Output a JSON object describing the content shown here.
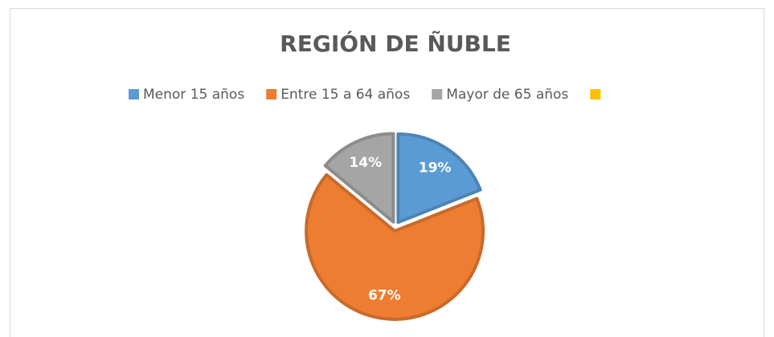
{
  "chart_data": {
    "type": "pie",
    "title": "REGIÓN DE ÑUBLE",
    "categories": [
      "Menor 15 años",
      "Entre 15 a 64 años",
      "Mayor de 65 años",
      null
    ],
    "values": [
      19,
      67,
      14,
      null
    ],
    "value_labels": [
      "19%",
      "67%",
      "14%",
      null
    ],
    "colors": [
      "#5b9bd5",
      "#ed7d31",
      "#a5a5a5",
      "#ffc000"
    ],
    "legend": "top"
  }
}
